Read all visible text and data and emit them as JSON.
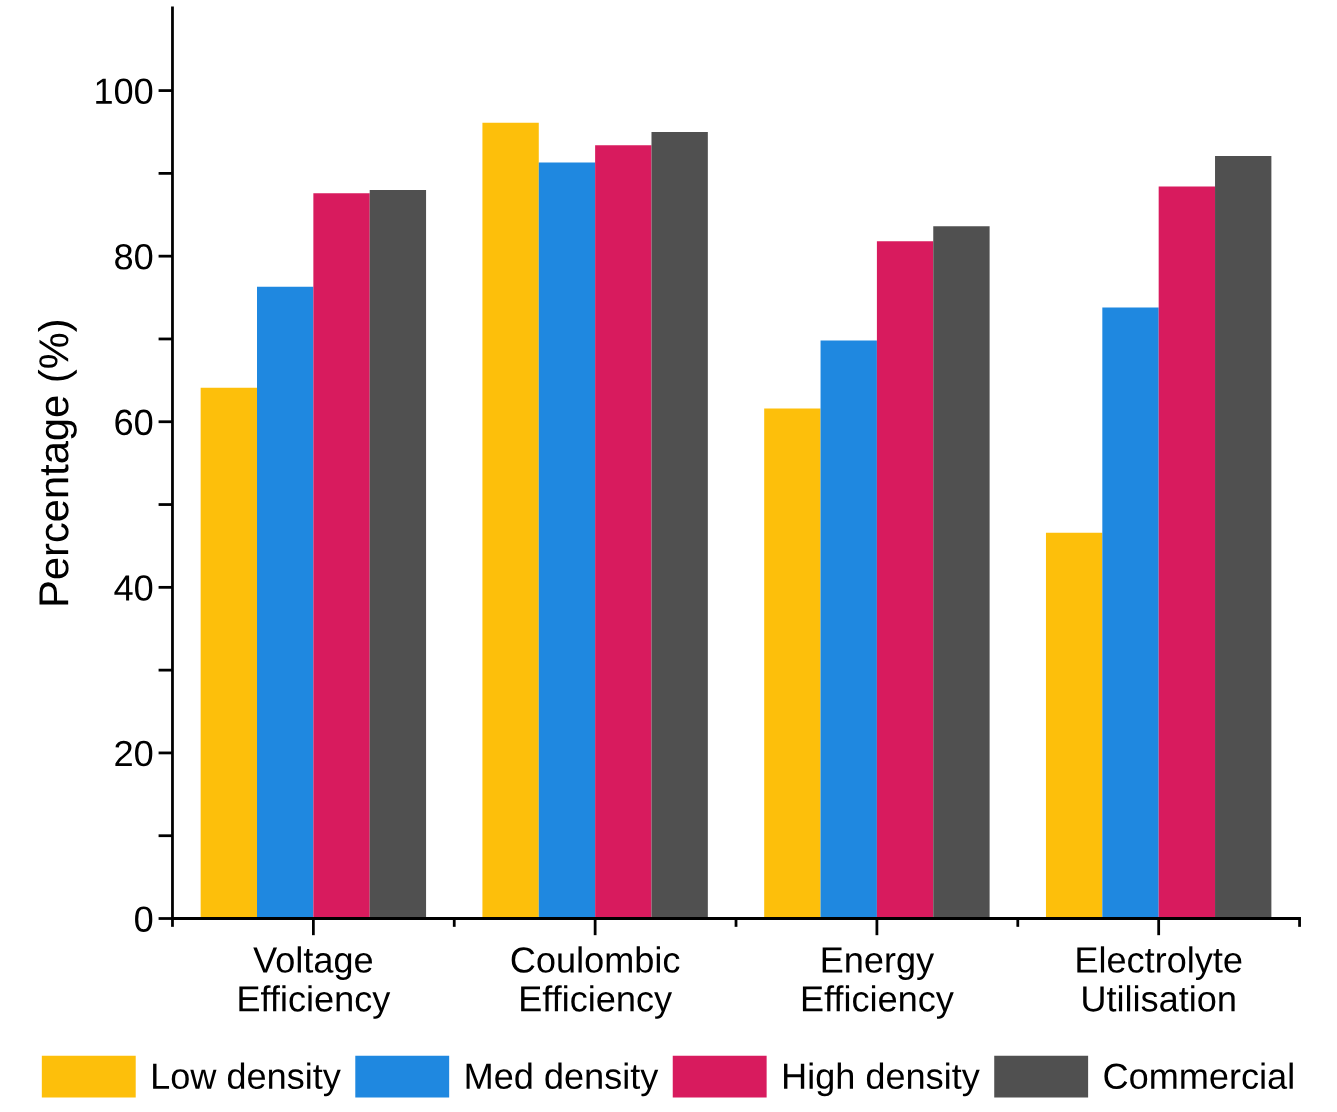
{
  "chart_data": {
    "type": "bar",
    "ylabel": "Percentage (%)",
    "categories": [
      "Voltage\nEfficiency",
      "Coulombic\nEfficiency",
      "Energy\nEfficiency",
      "Electrolyte\nUtilisation"
    ],
    "series": [
      {
        "name": "Low density",
        "color": "#fdbf0b",
        "values": [
          64.1,
          96.1,
          61.6,
          46.6
        ]
      },
      {
        "name": "Med density",
        "color": "#1f88e0",
        "values": [
          76.3,
          91.3,
          69.8,
          73.8
        ]
      },
      {
        "name": "High density",
        "color": "#d81b5e",
        "values": [
          87.6,
          93.4,
          81.8,
          88.4
        ]
      },
      {
        "name": "Commercial",
        "color": "#505050",
        "values": [
          88.0,
          95.0,
          83.6,
          92.1
        ]
      }
    ],
    "ylim": [
      0,
      110
    ],
    "yticks": [
      0,
      {
        "value": 10,
        "label": null
      },
      20,
      {
        "value": 30,
        "label": null
      },
      40,
      {
        "value": 50,
        "label": null
      },
      60,
      {
        "value": 70,
        "label": null
      },
      80,
      {
        "value": 90,
        "label": null
      },
      100
    ],
    "grid": false,
    "legend": "bottom"
  }
}
